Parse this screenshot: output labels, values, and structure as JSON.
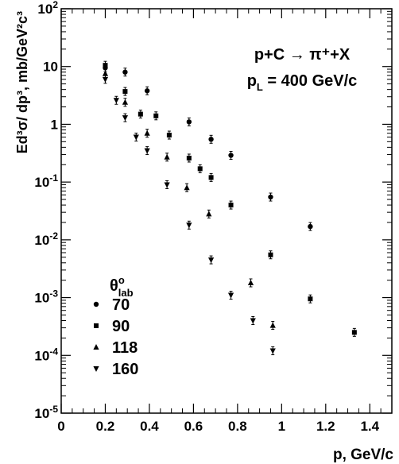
{
  "chart_data": {
    "type": "scatter",
    "title_line1": "p+C → π⁺+X",
    "title_line2_main": "p",
    "title_line2_sub": "L",
    "title_line2_rest": " = 400 GeV/c",
    "xlabel": "p, GeV/c",
    "ylabel": "Ed³σ/ dp³, mb/GeV²c³",
    "xlim": [
      0,
      1.5
    ],
    "ylim": [
      1e-05,
      100
    ],
    "yscale": "log",
    "x_ticks": [
      "0",
      "0.2",
      "0.4",
      "0.6",
      "0.8",
      "1",
      "1.2",
      "1.4"
    ],
    "y_ticks": [
      {
        "base": "10",
        "exp": "-5"
      },
      {
        "base": "10",
        "exp": "-4"
      },
      {
        "base": "10",
        "exp": "-3"
      },
      {
        "base": "10",
        "exp": "-2"
      },
      {
        "base": "10",
        "exp": "-1"
      },
      {
        "base": "1",
        "exp": ""
      },
      {
        "base": "10",
        "exp": ""
      },
      {
        "base": "10",
        "exp": "2"
      }
    ],
    "legend_title": "θ",
    "legend_title_sup": "o",
    "legend_title_sub": "lab",
    "legend_placement": "bottom-left",
    "series": [
      {
        "name": "70",
        "marker": "circle",
        "x": [
          0.2,
          0.29,
          0.39,
          0.58,
          0.68,
          0.77,
          0.95,
          1.13
        ],
        "y": [
          9.5,
          8.0,
          3.8,
          1.1,
          0.55,
          0.29,
          0.055,
          0.017
        ]
      },
      {
        "name": "90",
        "marker": "square",
        "x": [
          0.2,
          0.29,
          0.36,
          0.43,
          0.49,
          0.58,
          0.63,
          0.68,
          0.77,
          0.95,
          1.13,
          1.33
        ],
        "y": [
          10.5,
          3.7,
          1.5,
          1.4,
          0.65,
          0.26,
          0.17,
          0.12,
          0.04,
          0.0055,
          0.00095,
          0.00025
        ]
      },
      {
        "name": "118",
        "marker": "triangle-up",
        "x": [
          0.2,
          0.29,
          0.39,
          0.48,
          0.57,
          0.67,
          0.86,
          0.96
        ],
        "y": [
          7.5,
          2.4,
          0.7,
          0.27,
          0.08,
          0.028,
          0.0018,
          0.00033
        ]
      },
      {
        "name": "160",
        "marker": "triangle-down",
        "x": [
          0.2,
          0.25,
          0.29,
          0.34,
          0.39,
          0.48,
          0.58,
          0.68,
          0.77,
          0.87,
          0.96
        ],
        "y": [
          6.0,
          2.6,
          1.3,
          0.6,
          0.35,
          0.09,
          0.018,
          0.0045,
          0.0011,
          0.0004,
          0.00012
        ]
      }
    ]
  }
}
